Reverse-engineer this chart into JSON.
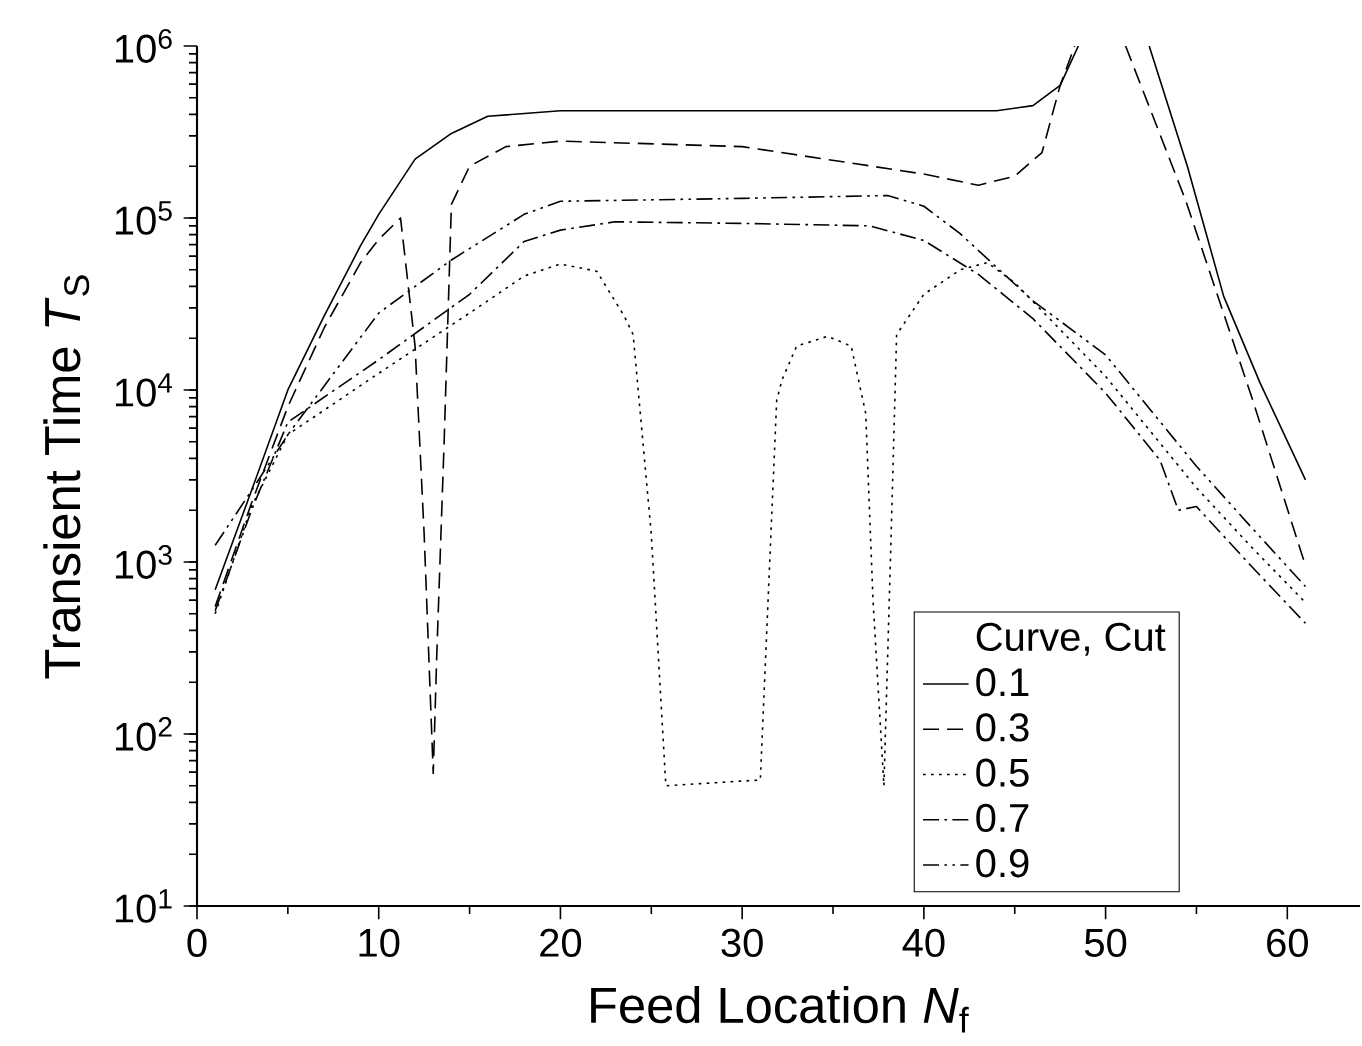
{
  "chart_data": {
    "type": "line",
    "xlabel": "Feed Location *N*$_{f}$",
    "ylabel": "Transient Time *T*$_{S}$",
    "legend_title": "Curve, Cut",
    "legend": "bottom right",
    "log": "y",
    "grid": false,
    "marker": "none",
    "xlim": [
      0,
      64
    ],
    "xticks": [
      0,
      10,
      20,
      30,
      40,
      50,
      60
    ],
    "ylim": [
      10,
      1000000
    ],
    "yticks": [
      {
        "value": 10,
        "label": "10$^{1}$"
      },
      {
        "value": 100,
        "label": "10$^{2}$"
      },
      {
        "value": 1000,
        "label": "10$^{3}$"
      },
      {
        "value": 10000,
        "label": "10$^{4}$"
      },
      {
        "value": 100000,
        "label": "10$^{5}$"
      },
      {
        "value": 1000000,
        "label": "10$^{6}$"
      }
    ],
    "series": [
      {
        "name": "0.1",
        "color": "#000000",
        "line_style": "solid",
        "x": [
          1,
          3,
          5,
          7,
          9,
          10,
          12,
          14,
          16,
          20,
          30,
          44,
          46,
          47.5,
          48.5,
          null,
          52.4,
          54.5,
          56.5,
          58.5,
          61
        ],
        "values": [
          690,
          2600,
          10000,
          27000,
          69000,
          105000,
          220000,
          310000,
          390000,
          420000,
          420000,
          420000,
          450000,
          590000,
          1000000,
          null,
          1000000,
          200000,
          35000,
          11000,
          3000
        ]
      },
      {
        "name": "0.3",
        "color": "#000000",
        "line_style": "dashed",
        "x": [
          1,
          3,
          5,
          7,
          9,
          10,
          11.2,
          12,
          12.5,
          13,
          13.2,
          13.6,
          14,
          15,
          17,
          20,
          30,
          40,
          43,
          45,
          46.5,
          47.5,
          48.3,
          null,
          51.1,
          54.4,
          58.1,
          61
        ],
        "values": [
          550,
          2200,
          8000,
          23000,
          55000,
          75000,
          100000,
          18000,
          1450,
          59,
          300,
          5000,
          120000,
          200000,
          260000,
          280000,
          260000,
          180000,
          155000,
          175000,
          240000,
          590000,
          1000000,
          null,
          1000000,
          127000,
          8700,
          950
        ]
      },
      {
        "name": "0.5",
        "color": "#000000",
        "line_style": "dotted",
        "x": [
          1,
          3,
          5,
          10,
          15,
          18,
          20,
          22,
          23.5,
          24,
          25,
          25.8,
          31,
          31.9,
          32.2,
          33,
          34.7,
          36,
          36.8,
          37.2,
          37.8,
          38.2,
          38.5,
          40,
          42,
          43.5,
          45,
          50,
          55,
          58,
          61
        ],
        "values": [
          500,
          2100,
          5500,
          12500,
          28000,
          46000,
          54000,
          49000,
          27000,
          21000,
          1450,
          50,
          54,
          8700,
          11500,
          18000,
          20500,
          18000,
          7300,
          600,
          50,
          1450,
          21000,
          36000,
          50000,
          55000,
          42000,
          12000,
          2700,
          1230,
          580
        ]
      },
      {
        "name": "0.7",
        "color": "#000000",
        "line_style": "dashdot",
        "x": [
          1,
          3,
          5,
          10,
          15,
          18,
          20,
          23,
          30,
          37,
          40,
          43,
          46,
          50,
          53,
          54,
          55,
          58,
          61
        ],
        "values": [
          520,
          2000,
          6500,
          15000,
          36000,
          73000,
          85000,
          95000,
          93000,
          90000,
          74000,
          47000,
          26000,
          9600,
          3900,
          2000,
          2100,
          950,
          440
        ]
      },
      {
        "name": "0.9",
        "color": "#000000",
        "line_style": "dashdotdot",
        "x": [
          1,
          3,
          5,
          10,
          14,
          18,
          20,
          30,
          38,
          40,
          42,
          46,
          50,
          55,
          58,
          61
        ],
        "values": [
          1250,
          2600,
          5500,
          28000,
          57000,
          105000,
          125000,
          130000,
          135000,
          117000,
          81000,
          33000,
          16000,
          3600,
          1600,
          720
        ]
      }
    ]
  }
}
